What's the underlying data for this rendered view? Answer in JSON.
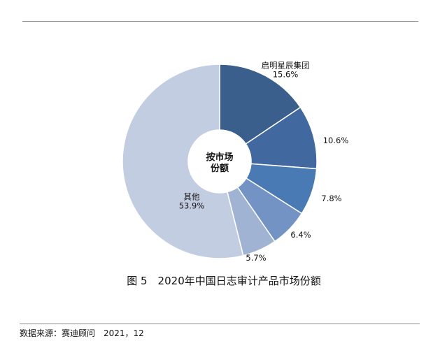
{
  "chart_data": {
    "type": "pie",
    "donut": true,
    "center_label": [
      "按市场",
      "份额"
    ],
    "slices": [
      {
        "name": "启明星辰集团",
        "value": 15.6,
        "label": "15.6%",
        "color": "#3A5F8C"
      },
      {
        "name": "",
        "value": 10.6,
        "label": "10.6%",
        "color": "#41699F"
      },
      {
        "name": "",
        "value": 7.8,
        "label": "7.8%",
        "color": "#4A7AB4"
      },
      {
        "name": "",
        "value": 6.4,
        "label": "6.4%",
        "color": "#7393C4"
      },
      {
        "name": "",
        "value": 5.7,
        "label": "5.7%",
        "color": "#A1B3D3"
      },
      {
        "name": "其他",
        "value": 53.9,
        "label": "53.9%",
        "color": "#C3CDE1"
      }
    ],
    "start": "top",
    "direction": "clockwise",
    "title": "图 5　2020年中国日志审计产品市场份额"
  },
  "caption": "图 5　2020年中国日志审计产品市场份额",
  "source": "数据来源：赛迪顾问　2021，12"
}
